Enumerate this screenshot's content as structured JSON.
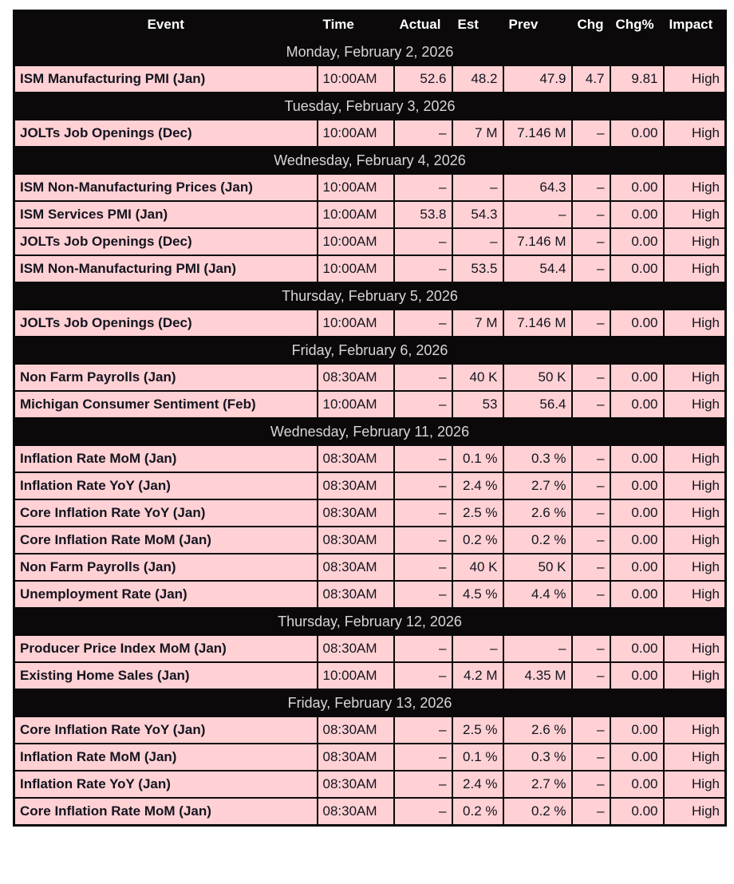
{
  "table": {
    "columns": [
      "Event",
      "Time",
      "Actual",
      "Est",
      "Prev",
      "Chg",
      "Chg%",
      "Impact"
    ],
    "colors": {
      "row_background_pink": "#ffd1d4",
      "header_background_black": "#0b0909",
      "header_text_white": "#ffffff",
      "date_row_text_gray": "#d9d6d6",
      "data_text_dark": "#14141f",
      "border_black": "#0b0909",
      "page_background": "#ffffff"
    },
    "sections": [
      {
        "date": "Monday, February 2, 2026",
        "events": [
          {
            "event": "ISM Manufacturing PMI (Jan)",
            "time": "10:00AM",
            "actual": "52.6",
            "est": "48.2",
            "prev": "47.9",
            "chg": "4.7",
            "chg_pct": "9.81",
            "impact": "High"
          }
        ]
      },
      {
        "date": "Tuesday, February 3, 2026",
        "events": [
          {
            "event": "JOLTs Job Openings (Dec)",
            "time": "10:00AM",
            "actual": "–",
            "est": "7 M",
            "prev": "7.146 M",
            "chg": "–",
            "chg_pct": "0.00",
            "impact": "High"
          }
        ]
      },
      {
        "date": "Wednesday, February 4, 2026",
        "events": [
          {
            "event": "ISM Non-Manufacturing Prices (Jan)",
            "time": "10:00AM",
            "actual": "–",
            "est": "–",
            "prev": "64.3",
            "chg": "–",
            "chg_pct": "0.00",
            "impact": "High"
          },
          {
            "event": "ISM Services PMI (Jan)",
            "time": "10:00AM",
            "actual": "53.8",
            "est": "54.3",
            "prev": "–",
            "chg": "–",
            "chg_pct": "0.00",
            "impact": "High"
          },
          {
            "event": "JOLTs Job Openings (Dec)",
            "time": "10:00AM",
            "actual": "–",
            "est": "–",
            "prev": "7.146 M",
            "chg": "–",
            "chg_pct": "0.00",
            "impact": "High"
          },
          {
            "event": "ISM Non-Manufacturing PMI (Jan)",
            "time": "10:00AM",
            "actual": "–",
            "est": "53.5",
            "prev": "54.4",
            "chg": "–",
            "chg_pct": "0.00",
            "impact": "High"
          }
        ]
      },
      {
        "date": "Thursday, February 5, 2026",
        "events": [
          {
            "event": "JOLTs Job Openings (Dec)",
            "time": "10:00AM",
            "actual": "–",
            "est": "7 M",
            "prev": "7.146 M",
            "chg": "–",
            "chg_pct": "0.00",
            "impact": "High"
          }
        ]
      },
      {
        "date": "Friday, February 6, 2026",
        "events": [
          {
            "event": "Non Farm Payrolls (Jan)",
            "time": "08:30AM",
            "actual": "–",
            "est": "40 K",
            "prev": "50 K",
            "chg": "–",
            "chg_pct": "0.00",
            "impact": "High"
          },
          {
            "event": "Michigan Consumer Sentiment (Feb)",
            "time": "10:00AM",
            "actual": "–",
            "est": "53",
            "prev": "56.4",
            "chg": "–",
            "chg_pct": "0.00",
            "impact": "High"
          }
        ]
      },
      {
        "date": "Wednesday, February 11, 2026",
        "events": [
          {
            "event": "Inflation Rate MoM (Jan)",
            "time": "08:30AM",
            "actual": "–",
            "est": "0.1 %",
            "prev": "0.3 %",
            "chg": "–",
            "chg_pct": "0.00",
            "impact": "High"
          },
          {
            "event": "Inflation Rate YoY (Jan)",
            "time": "08:30AM",
            "actual": "–",
            "est": "2.4 %",
            "prev": "2.7 %",
            "chg": "–",
            "chg_pct": "0.00",
            "impact": "High"
          },
          {
            "event": "Core Inflation Rate YoY (Jan)",
            "time": "08:30AM",
            "actual": "–",
            "est": "2.5 %",
            "prev": "2.6 %",
            "chg": "–",
            "chg_pct": "0.00",
            "impact": "High"
          },
          {
            "event": "Core Inflation Rate MoM (Jan)",
            "time": "08:30AM",
            "actual": "–",
            "est": "0.2 %",
            "prev": "0.2 %",
            "chg": "–",
            "chg_pct": "0.00",
            "impact": "High"
          },
          {
            "event": "Non Farm Payrolls (Jan)",
            "time": "08:30AM",
            "actual": "–",
            "est": "40 K",
            "prev": "50 K",
            "chg": "–",
            "chg_pct": "0.00",
            "impact": "High"
          },
          {
            "event": "Unemployment Rate (Jan)",
            "time": "08:30AM",
            "actual": "–",
            "est": "4.5 %",
            "prev": "4.4 %",
            "chg": "–",
            "chg_pct": "0.00",
            "impact": "High"
          }
        ]
      },
      {
        "date": "Thursday, February 12, 2026",
        "events": [
          {
            "event": "Producer Price Index MoM (Jan)",
            "time": "08:30AM",
            "actual": "–",
            "est": "–",
            "prev": "–",
            "chg": "–",
            "chg_pct": "0.00",
            "impact": "High"
          },
          {
            "event": "Existing Home Sales (Jan)",
            "time": "10:00AM",
            "actual": "–",
            "est": "4.2 M",
            "prev": "4.35 M",
            "chg": "–",
            "chg_pct": "0.00",
            "impact": "High"
          }
        ]
      },
      {
        "date": "Friday, February 13, 2026",
        "events": [
          {
            "event": "Core Inflation Rate YoY (Jan)",
            "time": "08:30AM",
            "actual": "–",
            "est": "2.5 %",
            "prev": "2.6 %",
            "chg": "–",
            "chg_pct": "0.00",
            "impact": "High"
          },
          {
            "event": "Inflation Rate MoM (Jan)",
            "time": "08:30AM",
            "actual": "–",
            "est": "0.1 %",
            "prev": "0.3 %",
            "chg": "–",
            "chg_pct": "0.00",
            "impact": "High"
          },
          {
            "event": "Inflation Rate YoY (Jan)",
            "time": "08:30AM",
            "actual": "–",
            "est": "2.4 %",
            "prev": "2.7 %",
            "chg": "–",
            "chg_pct": "0.00",
            "impact": "High"
          },
          {
            "event": "Core Inflation Rate MoM (Jan)",
            "time": "08:30AM",
            "actual": "–",
            "est": "0.2 %",
            "prev": "0.2 %",
            "chg": "–",
            "chg_pct": "0.00",
            "impact": "High"
          }
        ]
      }
    ]
  }
}
